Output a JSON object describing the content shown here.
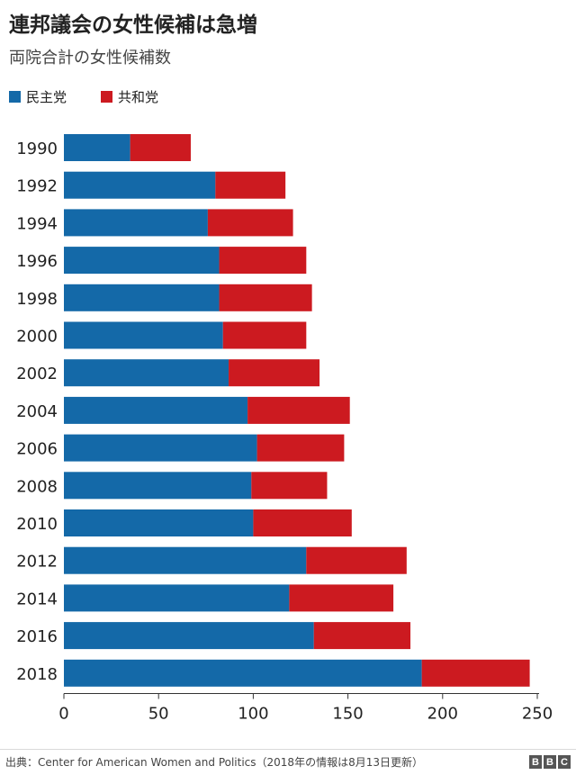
{
  "title": "連邦議会の女性候補は急増",
  "subtitle": "両院合計の女性候補数",
  "source": "出典：Center for American Women and Politics（2018年の情報は8月13日更新）",
  "logo": [
    "B",
    "B",
    "C"
  ],
  "chart_data": {
    "type": "bar",
    "orientation": "horizontal",
    "stacked": true,
    "categories": [
      "1990",
      "1992",
      "1994",
      "1996",
      "1998",
      "2000",
      "2002",
      "2004",
      "2006",
      "2008",
      "2010",
      "2012",
      "2014",
      "2016",
      "2018"
    ],
    "series": [
      {
        "name": "民主党",
        "color": "#1469a8",
        "values": [
          35,
          80,
          76,
          82,
          82,
          84,
          87,
          97,
          102,
          99,
          100,
          128,
          119,
          132,
          189
        ]
      },
      {
        "name": "共和党",
        "color": "#cc1a20",
        "values": [
          32,
          37,
          45,
          46,
          49,
          44,
          48,
          54,
          46,
          40,
          52,
          53,
          55,
          51,
          57
        ]
      }
    ],
    "xlim": [
      0,
      250
    ],
    "xticks": [
      "0",
      "50",
      "100",
      "150",
      "200",
      "250"
    ],
    "grid": false,
    "legend": "top-left"
  }
}
